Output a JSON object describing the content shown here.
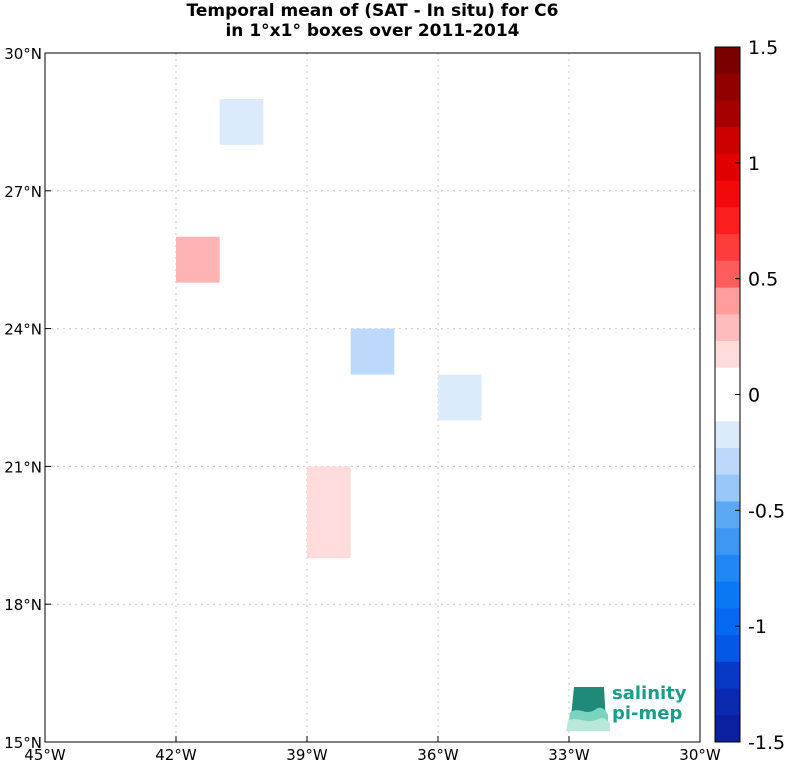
{
  "chart_data": {
    "type": "heatmap",
    "title": "Temporal mean of (SAT - In situ) for C6",
    "subtitle": "in 1°x1° boxes over 2011-2014",
    "x_ticks": [
      "45°W",
      "42°W",
      "39°W",
      "36°W",
      "33°W",
      "30°W"
    ],
    "y_ticks": [
      "15°N",
      "18°N",
      "21°N",
      "24°N",
      "27°N",
      "30°N"
    ],
    "x_range_deg_w": [
      45,
      30
    ],
    "y_range_deg_n": [
      15,
      30
    ],
    "grid": true,
    "grid_style": "dotted",
    "cells": [
      {
        "lon_w": [
          41,
          40
        ],
        "lat_n": [
          28,
          29
        ],
        "value": -0.15,
        "color": "#dcebfc"
      },
      {
        "lon_w": [
          42,
          41
        ],
        "lat_n": [
          25,
          26
        ],
        "value": 0.3,
        "color": "#ffb4b4"
      },
      {
        "lon_w": [
          38,
          37
        ],
        "lat_n": [
          23,
          24
        ],
        "value": -0.3,
        "color": "#bcd9fb"
      },
      {
        "lon_w": [
          36,
          35
        ],
        "lat_n": [
          22,
          23
        ],
        "value": -0.15,
        "color": "#dcebfc"
      },
      {
        "lon_w": [
          39,
          38
        ],
        "lat_n": [
          19,
          21
        ],
        "value": 0.15,
        "color": "#ffdcdc"
      }
    ],
    "colorbar": {
      "range": [
        -1.5,
        1.5
      ],
      "tick_labels": [
        "1.5",
        "1",
        "0.5",
        "0",
        "-0.5",
        "-1",
        "-1.5"
      ],
      "tick_values": [
        1.5,
        1,
        0.5,
        0,
        -0.5,
        -1,
        -1.5
      ]
    }
  },
  "logo": {
    "line1": "salinity",
    "line2": "pi-mep"
  }
}
